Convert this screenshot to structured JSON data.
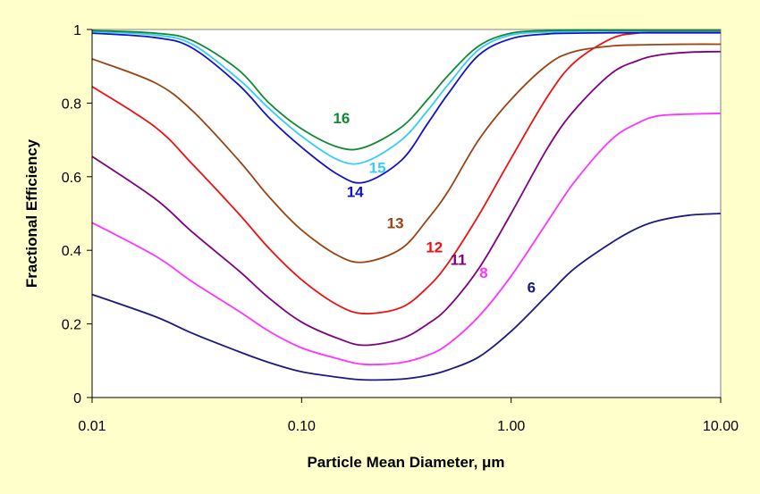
{
  "chart_data": {
    "type": "line",
    "title": "",
    "xlabel": "Particle Mean Diameter, μm",
    "ylabel": "Fractional Efficiency",
    "xscale": "log",
    "xlim": [
      0.01,
      10.0
    ],
    "ylim": [
      0,
      1
    ],
    "xticks": [
      "0.01",
      "0.10",
      "1.00",
      "10.00"
    ],
    "yticks": [
      "0",
      "0.2",
      "0.4",
      "0.6",
      "0.8",
      "1"
    ],
    "grid": false,
    "legend": "none",
    "series": [
      {
        "name": "6",
        "color": "#1a1a80",
        "label_at": [
          1.25,
          0.285
        ],
        "points": [
          [
            0.01,
            0.28
          ],
          [
            0.02,
            0.22
          ],
          [
            0.03,
            0.175
          ],
          [
            0.05,
            0.125
          ],
          [
            0.07,
            0.095
          ],
          [
            0.1,
            0.07
          ],
          [
            0.15,
            0.055
          ],
          [
            0.2,
            0.048
          ],
          [
            0.3,
            0.05
          ],
          [
            0.4,
            0.06
          ],
          [
            0.5,
            0.075
          ],
          [
            0.7,
            0.11
          ],
          [
            1.0,
            0.18
          ],
          [
            1.5,
            0.28
          ],
          [
            2.0,
            0.35
          ],
          [
            3.0,
            0.42
          ],
          [
            4.0,
            0.46
          ],
          [
            5.0,
            0.48
          ],
          [
            7.0,
            0.495
          ],
          [
            10.0,
            0.5
          ]
        ]
      },
      {
        "name": "8",
        "color": "#ff33ff",
        "label_at": [
          0.74,
          0.325
        ],
        "points": [
          [
            0.01,
            0.475
          ],
          [
            0.02,
            0.385
          ],
          [
            0.03,
            0.315
          ],
          [
            0.05,
            0.235
          ],
          [
            0.07,
            0.18
          ],
          [
            0.1,
            0.135
          ],
          [
            0.15,
            0.105
          ],
          [
            0.2,
            0.09
          ],
          [
            0.3,
            0.095
          ],
          [
            0.4,
            0.115
          ],
          [
            0.5,
            0.145
          ],
          [
            0.7,
            0.22
          ],
          [
            1.0,
            0.33
          ],
          [
            1.5,
            0.48
          ],
          [
            2.0,
            0.585
          ],
          [
            3.0,
            0.7
          ],
          [
            4.0,
            0.745
          ],
          [
            5.0,
            0.765
          ],
          [
            7.0,
            0.77
          ],
          [
            10.0,
            0.772
          ]
        ]
      },
      {
        "name": "11",
        "color": "#800080",
        "label_at": [
          0.56,
          0.36
        ],
        "points": [
          [
            0.01,
            0.655
          ],
          [
            0.02,
            0.54
          ],
          [
            0.03,
            0.45
          ],
          [
            0.05,
            0.345
          ],
          [
            0.07,
            0.27
          ],
          [
            0.1,
            0.205
          ],
          [
            0.15,
            0.16
          ],
          [
            0.2,
            0.142
          ],
          [
            0.3,
            0.16
          ],
          [
            0.4,
            0.2
          ],
          [
            0.5,
            0.245
          ],
          [
            0.7,
            0.35
          ],
          [
            1.0,
            0.5
          ],
          [
            1.5,
            0.68
          ],
          [
            2.0,
            0.78
          ],
          [
            3.0,
            0.88
          ],
          [
            4.0,
            0.915
          ],
          [
            5.0,
            0.93
          ],
          [
            7.0,
            0.938
          ],
          [
            10.0,
            0.94
          ]
        ]
      },
      {
        "name": "12",
        "color": "#ee1111",
        "label_at": [
          0.43,
          0.395
        ],
        "points": [
          [
            0.01,
            0.845
          ],
          [
            0.02,
            0.735
          ],
          [
            0.03,
            0.635
          ],
          [
            0.05,
            0.5
          ],
          [
            0.07,
            0.405
          ],
          [
            0.1,
            0.32
          ],
          [
            0.15,
            0.25
          ],
          [
            0.2,
            0.228
          ],
          [
            0.3,
            0.245
          ],
          [
            0.4,
            0.3
          ],
          [
            0.5,
            0.365
          ],
          [
            0.7,
            0.495
          ],
          [
            1.0,
            0.65
          ],
          [
            1.5,
            0.82
          ],
          [
            2.0,
            0.91
          ],
          [
            3.0,
            0.975
          ],
          [
            4.0,
            0.99
          ],
          [
            5.0,
            0.992
          ],
          [
            7.0,
            0.993
          ],
          [
            10.0,
            0.993
          ]
        ]
      },
      {
        "name": "13",
        "color": "#994411",
        "label_at": [
          0.28,
          0.46
        ],
        "points": [
          [
            0.01,
            0.92
          ],
          [
            0.02,
            0.855
          ],
          [
            0.03,
            0.78
          ],
          [
            0.05,
            0.645
          ],
          [
            0.07,
            0.545
          ],
          [
            0.1,
            0.455
          ],
          [
            0.15,
            0.385
          ],
          [
            0.2,
            0.368
          ],
          [
            0.3,
            0.405
          ],
          [
            0.4,
            0.485
          ],
          [
            0.5,
            0.56
          ],
          [
            0.7,
            0.7
          ],
          [
            1.0,
            0.81
          ],
          [
            1.5,
            0.905
          ],
          [
            2.0,
            0.94
          ],
          [
            3.0,
            0.955
          ],
          [
            4.0,
            0.958
          ],
          [
            5.0,
            0.959
          ],
          [
            7.0,
            0.96
          ],
          [
            10.0,
            0.96
          ]
        ]
      },
      {
        "name": "14",
        "color": "#1111cc",
        "label_at": [
          0.18,
          0.545
        ],
        "points": [
          [
            0.01,
            0.99
          ],
          [
            0.02,
            0.978
          ],
          [
            0.03,
            0.95
          ],
          [
            0.05,
            0.85
          ],
          [
            0.07,
            0.76
          ],
          [
            0.1,
            0.68
          ],
          [
            0.15,
            0.605
          ],
          [
            0.2,
            0.585
          ],
          [
            0.3,
            0.645
          ],
          [
            0.4,
            0.745
          ],
          [
            0.5,
            0.825
          ],
          [
            0.7,
            0.93
          ],
          [
            1.0,
            0.975
          ],
          [
            1.5,
            0.988
          ],
          [
            2.0,
            0.99
          ],
          [
            3.0,
            0.991
          ],
          [
            4.0,
            0.991
          ],
          [
            5.0,
            0.991
          ],
          [
            7.0,
            0.991
          ],
          [
            10.0,
            0.991
          ]
        ]
      },
      {
        "name": "15",
        "color": "#33ccff",
        "label_at": [
          0.23,
          0.61
        ],
        "points": [
          [
            0.01,
            0.994
          ],
          [
            0.02,
            0.985
          ],
          [
            0.03,
            0.96
          ],
          [
            0.05,
            0.865
          ],
          [
            0.07,
            0.785
          ],
          [
            0.1,
            0.71
          ],
          [
            0.15,
            0.645
          ],
          [
            0.2,
            0.64
          ],
          [
            0.3,
            0.7
          ],
          [
            0.4,
            0.78
          ],
          [
            0.5,
            0.85
          ],
          [
            0.7,
            0.945
          ],
          [
            1.0,
            0.985
          ],
          [
            1.5,
            0.993
          ],
          [
            2.0,
            0.995
          ],
          [
            3.0,
            0.996
          ],
          [
            4.0,
            0.996
          ],
          [
            5.0,
            0.996
          ],
          [
            7.0,
            0.996
          ],
          [
            10.0,
            0.996
          ]
        ]
      },
      {
        "name": "16",
        "color": "#118833",
        "label_at": [
          0.155,
          0.745
        ],
        "points": [
          [
            0.01,
            0.997
          ],
          [
            0.02,
            0.99
          ],
          [
            0.03,
            0.97
          ],
          [
            0.05,
            0.89
          ],
          [
            0.07,
            0.8
          ],
          [
            0.1,
            0.73
          ],
          [
            0.15,
            0.68
          ],
          [
            0.2,
            0.68
          ],
          [
            0.3,
            0.735
          ],
          [
            0.4,
            0.81
          ],
          [
            0.5,
            0.875
          ],
          [
            0.7,
            0.955
          ],
          [
            1.0,
            0.99
          ],
          [
            1.5,
            0.997
          ],
          [
            2.0,
            0.998
          ],
          [
            3.0,
            0.998
          ],
          [
            4.0,
            0.998
          ],
          [
            5.0,
            0.998
          ],
          [
            7.0,
            0.998
          ],
          [
            10.0,
            0.998
          ]
        ]
      }
    ]
  }
}
